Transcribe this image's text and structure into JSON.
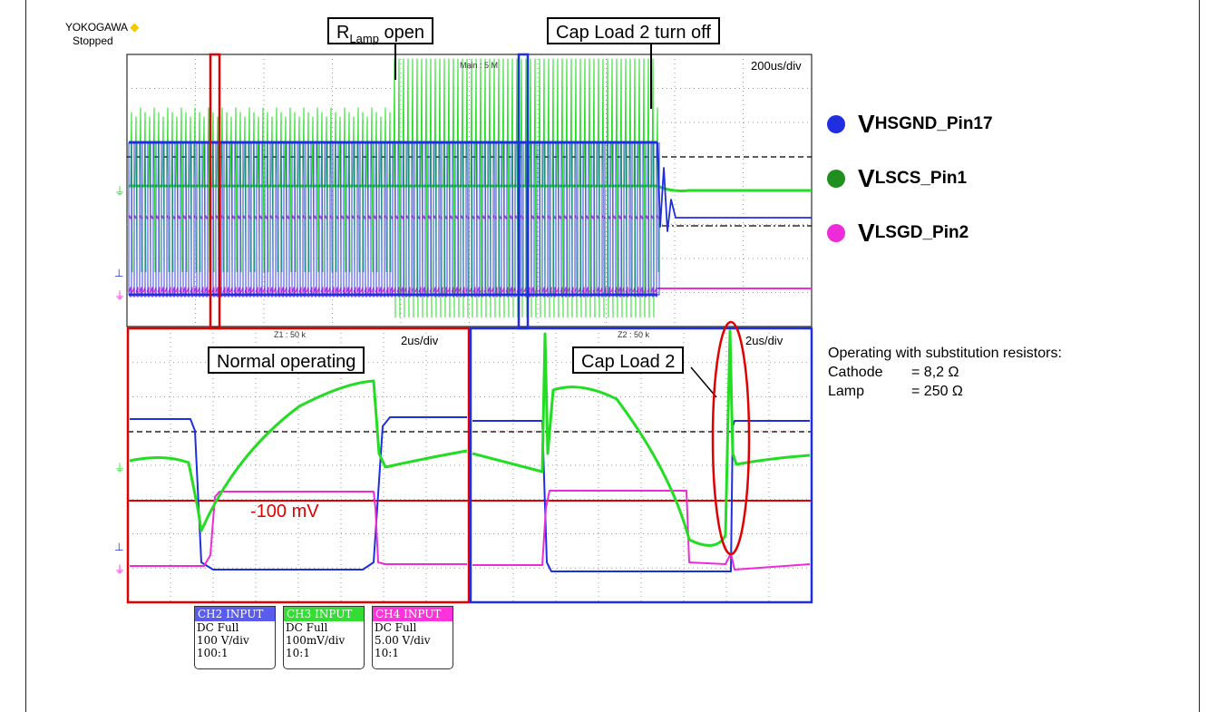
{
  "header": {
    "brand": "YOKOGAWA",
    "brand_mark": "◆",
    "status": "Stopped"
  },
  "callouts": {
    "rlamp_main": "R",
    "rlamp_sub": "Lamp",
    "rlamp_suffix": " open",
    "cap_turn_off": "Cap Load 2 turn off",
    "normal": "Normal operating",
    "cap_load": "Cap Load 2"
  },
  "main_window": {
    "timebase": "200us/div",
    "label": "Main : 5 M"
  },
  "zoom_windows": [
    {
      "label": "Z1 : 50 k",
      "timebase": "2us/div"
    },
    {
      "label": "Z2 : 50 k",
      "timebase": "2us/div"
    }
  ],
  "threshold_label": "-100 mV",
  "legend": [
    {
      "main": "V",
      "sub": "HSGND_Pin17",
      "color": "#1f2ee0"
    },
    {
      "main": "V",
      "sub": "LSCS_Pin1",
      "color": "#1f8f1f"
    },
    {
      "main": "V",
      "sub": "LSGD_Pin2",
      "color": "#ee2bd8"
    }
  ],
  "note": {
    "title": "Operating with substitution resistors:",
    "rows": [
      {
        "label": "Cathode",
        "value": "= 8,2 Ω"
      },
      {
        "label": "Lamp",
        "value": "= 250 Ω"
      }
    ]
  },
  "channels": [
    {
      "name": "CH2 INPUT",
      "coupling": "DC Full",
      "scale": "100 V/div",
      "probe": "100:1",
      "color": "#5a5cf0"
    },
    {
      "name": "CH3 INPUT",
      "coupling": "DC Full",
      "scale": "100mV/div",
      "probe": "10:1",
      "color": "#33dd33"
    },
    {
      "name": "CH4 INPUT",
      "coupling": "DC Full",
      "scale": "5.00 V/div",
      "probe": "10:1",
      "color": "#ff33dd"
    }
  ],
  "chart_data": {
    "type": "line",
    "title": "",
    "xlabel": "",
    "ylabel": "",
    "series": [
      {
        "name": "V_HSGND_Pin17",
        "color": "#1f2ee0"
      },
      {
        "name": "V_LSCS_Pin1",
        "color": "#22dd22"
      },
      {
        "name": "V_LSGD_Pin2",
        "color": "#ee2bd8"
      }
    ],
    "timebase_main": "200us/div",
    "timebase_zoom": "2us/div",
    "annotations": [
      "R_Lamp open",
      "Cap Load 2 turn off",
      "Normal operating",
      "Cap Load 2",
      "-100 mV"
    ],
    "grid": true
  }
}
